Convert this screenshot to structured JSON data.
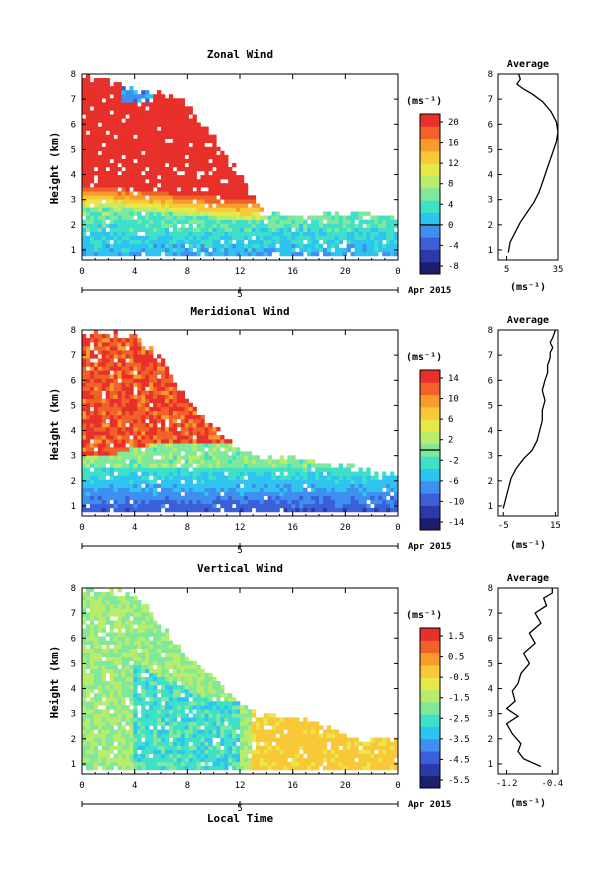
{
  "colorbar_colors": [
    "#1b1f6e",
    "#2b3aa8",
    "#3a5fd8",
    "#3f8ff0",
    "#2fc4f0",
    "#3fe0c8",
    "#7fe89a",
    "#b8ec6a",
    "#e8e84a",
    "#f8c838",
    "#f89a2c",
    "#f06228",
    "#e8302a"
  ],
  "panels": [
    {
      "title": "Zonal Wind",
      "unit": "(ms⁻¹)",
      "date_label": "Apr 2015",
      "day_label": "5",
      "xlabel": "",
      "ylabel": "Height (km)",
      "avg_title": "Average",
      "avg_unit": "(ms⁻¹)",
      "colorbar_ticks": [
        "20",
        "16",
        "12",
        "8",
        "4",
        "0",
        "-4",
        "-8"
      ],
      "colorbar_zero_index": 5
    },
    {
      "title": "Meridional Wind",
      "unit": "(ms⁻¹)",
      "date_label": "Apr 2015",
      "day_label": "5",
      "xlabel": "",
      "ylabel": "Height (km)",
      "avg_title": "Average",
      "avg_unit": "(ms⁻¹)",
      "colorbar_ticks": [
        "14",
        "10",
        "6",
        "2",
        "-2",
        "-6",
        "-10",
        "-14"
      ],
      "colorbar_zero_index": 3.5
    },
    {
      "title": "Vertical Wind",
      "unit": "(ms⁻¹)",
      "date_label": "Apr 2015",
      "day_label": "5",
      "xlabel": "Local Time",
      "ylabel": "Height (km)",
      "avg_title": "Average",
      "avg_unit": "(ms⁻¹)",
      "colorbar_ticks": [
        "1.5",
        "0.5",
        "-0.5",
        "-1.5",
        "-2.5",
        "-3.5",
        "-4.5",
        "-5.5"
      ],
      "colorbar_zero_index": null
    }
  ],
  "chart_data": [
    {
      "type": "heatmap",
      "title": "Zonal Wind",
      "xlabel": "",
      "ylabel": "Height (km)",
      "x_ticks": [
        "0",
        "4",
        "8",
        "12",
        "16",
        "20",
        "0"
      ],
      "y_ticks": [
        "1",
        "2",
        "3",
        "4",
        "5",
        "6",
        "7",
        "8"
      ],
      "xlim": [
        0,
        24
      ],
      "ylim": [
        0.6,
        8
      ],
      "colorbar_range": [
        -8,
        22
      ],
      "x_hours": [
        0,
        2,
        4,
        6,
        8,
        10,
        12,
        14,
        16,
        18,
        20,
        22,
        24
      ],
      "height_layers": [
        {
          "name": "top of data (km)",
          "values": [
            7.9,
            7.8,
            7.3,
            7.3,
            6.8,
            5.5,
            4.1,
            2.4,
            2.4,
            2.4,
            2.5,
            2.4,
            2.4
          ]
        },
        {
          "name": "strong wind base (km)",
          "values": [
            3.5,
            3.5,
            3.4,
            3.3,
            3.2,
            3.1,
            3.0,
            null,
            null,
            null,
            null,
            null,
            null
          ]
        }
      ]
    },
    {
      "type": "line",
      "title": "Average",
      "xlabel": "(ms⁻¹)",
      "ylabel": "",
      "x_ticks": [
        "5",
        "35"
      ],
      "y_ticks": [
        "1",
        "2",
        "3",
        "4",
        "5",
        "6",
        "7",
        "8"
      ],
      "xlim": [
        0,
        35
      ],
      "ylim": [
        0.6,
        8
      ],
      "series": [
        {
          "x": [
            6,
            7,
            10,
            13,
            17,
            21,
            24,
            26,
            28,
            30,
            32,
            34,
            35,
            34,
            31,
            26,
            20,
            15,
            13,
            11,
            13,
            12
          ],
          "y": [
            0.9,
            1.3,
            1.7,
            2.1,
            2.5,
            2.9,
            3.3,
            3.7,
            4.1,
            4.5,
            4.9,
            5.3,
            5.7,
            6.1,
            6.5,
            6.9,
            7.2,
            7.4,
            7.5,
            7.6,
            7.8,
            8.0
          ]
        }
      ]
    },
    {
      "type": "heatmap",
      "title": "Meridional Wind",
      "xlabel": "",
      "ylabel": "Height (km)",
      "x_ticks": [
        "0",
        "4",
        "8",
        "12",
        "16",
        "20",
        "0"
      ],
      "y_ticks": [
        "1",
        "2",
        "3",
        "4",
        "5",
        "6",
        "7",
        "8"
      ],
      "xlim": [
        0,
        24
      ],
      "ylim": [
        0.6,
        8
      ],
      "colorbar_range": [
        -16,
        16
      ],
      "x_hours": [
        0,
        2,
        4,
        6,
        8,
        10,
        12,
        14,
        16,
        18,
        20,
        22,
        24
      ],
      "height_layers": [
        {
          "name": "top of data (km)",
          "values": [
            7.9,
            7.9,
            7.8,
            6.9,
            5.2,
            4.1,
            3.3,
            2.9,
            3.0,
            2.8,
            2.6,
            2.3,
            2.3
          ]
        },
        {
          "name": "strong wind base (km)",
          "values": [
            3.0,
            3.0,
            3.3,
            3.5,
            3.5,
            3.5,
            null,
            null,
            null,
            null,
            null,
            null,
            null
          ]
        }
      ]
    },
    {
      "type": "line",
      "title": "Average",
      "xlabel": "(ms⁻¹)",
      "ylabel": "",
      "x_ticks": [
        "-5",
        "15"
      ],
      "y_ticks": [
        "1",
        "2",
        "3",
        "4",
        "5",
        "6",
        "7",
        "8"
      ],
      "xlim": [
        -7,
        16
      ],
      "ylim": [
        0.6,
        8
      ],
      "series": [
        {
          "x": [
            -5,
            -4,
            -3,
            -2,
            0,
            3,
            6,
            8,
            9,
            10,
            10,
            11,
            10,
            11,
            12,
            12,
            13,
            13,
            14,
            13,
            14,
            15
          ],
          "y": [
            0.9,
            1.3,
            1.7,
            2.1,
            2.5,
            2.9,
            3.2,
            3.6,
            4.0,
            4.4,
            4.8,
            5.2,
            5.6,
            6.0,
            6.3,
            6.6,
            6.9,
            7.1,
            7.3,
            7.5,
            7.7,
            8.0
          ]
        }
      ]
    },
    {
      "type": "heatmap",
      "title": "Vertical Wind",
      "xlabel": "Local Time",
      "ylabel": "Height (km)",
      "x_ticks": [
        "0",
        "4",
        "8",
        "12",
        "16",
        "20",
        "0"
      ],
      "y_ticks": [
        "1",
        "2",
        "3",
        "4",
        "5",
        "6",
        "7",
        "8"
      ],
      "xlim": [
        0,
        24
      ],
      "ylim": [
        0.6,
        8
      ],
      "colorbar_range": [
        -6,
        2
      ],
      "x_hours": [
        0,
        2,
        4,
        6,
        8,
        10,
        12,
        14,
        16,
        18,
        20,
        22,
        24
      ],
      "height_layers": [
        {
          "name": "top of data (km)",
          "values": [
            7.9,
            7.9,
            7.8,
            6.5,
            5.3,
            4.5,
            3.3,
            3.0,
            2.8,
            2.6,
            2.2,
            2.0,
            2.0
          ]
        },
        {
          "name": "downdraft core top (km)",
          "values": [
            3.5,
            4.5,
            5.0,
            4.5,
            4.0,
            3.5,
            null,
            null,
            null,
            null,
            null,
            null,
            null
          ]
        }
      ]
    },
    {
      "type": "line",
      "title": "Average",
      "xlabel": "(ms⁻¹)",
      "ylabel": "",
      "x_ticks": [
        "-1.2",
        "-0.4"
      ],
      "y_ticks": [
        "1",
        "2",
        "3",
        "4",
        "5",
        "6",
        "7",
        "8"
      ],
      "xlim": [
        -1.35,
        -0.3
      ],
      "ylim": [
        0.6,
        8
      ],
      "series": [
        {
          "x": [
            -0.6,
            -0.9,
            -1.0,
            -0.95,
            -1.1,
            -1.2,
            -1.0,
            -1.2,
            -1.05,
            -1.1,
            -1.0,
            -0.95,
            -0.8,
            -0.9,
            -0.7,
            -0.8,
            -0.6,
            -0.7,
            -0.5,
            -0.55,
            -0.4,
            -0.4
          ],
          "y": [
            0.9,
            1.2,
            1.5,
            1.8,
            2.2,
            2.6,
            2.9,
            3.2,
            3.5,
            3.9,
            4.2,
            4.6,
            5.0,
            5.4,
            5.8,
            6.2,
            6.6,
            7.0,
            7.3,
            7.6,
            7.8,
            8.0
          ]
        }
      ]
    }
  ]
}
